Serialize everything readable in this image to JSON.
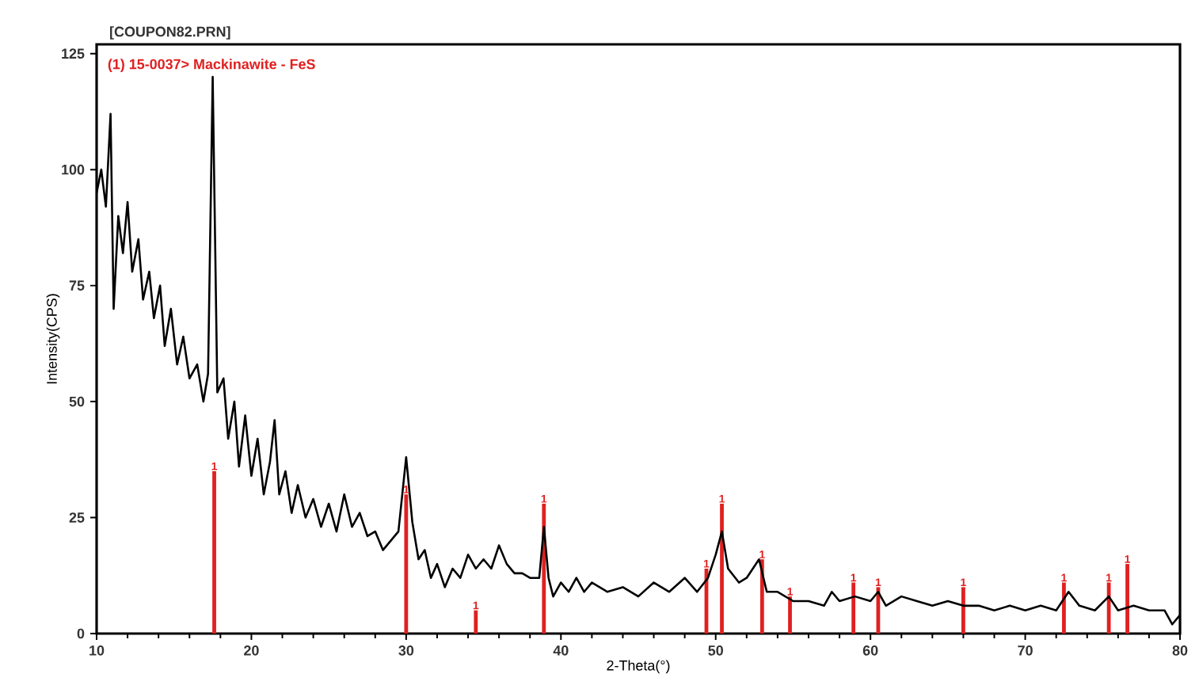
{
  "chart_data": {
    "type": "line",
    "title": "[COUPON82.PRN]",
    "xlabel": "2-Theta(°)",
    "ylabel": "Intensity(CPS)",
    "xlim": [
      10,
      80
    ],
    "ylim": [
      0,
      127
    ],
    "xticks": [
      10,
      20,
      30,
      40,
      50,
      60,
      70,
      80
    ],
    "yticks": [
      0,
      25,
      50,
      75,
      100,
      125
    ],
    "grid": false,
    "annotations": [
      "(1) 15-0037> Mackinawite - FeS",
      {
        "text": "1",
        "x": 17.6,
        "y": 35
      },
      {
        "text": "1",
        "x": 30.0,
        "y": 30
      },
      {
        "text": "1",
        "x": 34.5,
        "y": 5
      },
      {
        "text": "1",
        "x": 38.9,
        "y": 28
      },
      {
        "text": "1",
        "x": 49.4,
        "y": 14
      },
      {
        "text": "1",
        "x": 50.4,
        "y": 28
      },
      {
        "text": "1",
        "x": 53.0,
        "y": 16
      },
      {
        "text": "1",
        "x": 54.8,
        "y": 8
      },
      {
        "text": "1",
        "x": 58.9,
        "y": 11
      },
      {
        "text": "1",
        "x": 60.5,
        "y": 10
      },
      {
        "text": "1",
        "x": 66.0,
        "y": 10
      },
      {
        "text": "1",
        "x": 72.5,
        "y": 11
      },
      {
        "text": "1",
        "x": 75.4,
        "y": 11
      },
      {
        "text": "1",
        "x": 76.6,
        "y": 15
      }
    ],
    "series": [
      {
        "color": "#000000",
        "x": [
          10,
          10.3,
          10.6,
          10.9,
          11.1,
          11.4,
          11.7,
          12.0,
          12.3,
          12.7,
          13.0,
          13.4,
          13.7,
          14.1,
          14.4,
          14.8,
          15.2,
          15.6,
          16.0,
          16.5,
          16.9,
          17.2,
          17.5,
          17.8,
          18.2,
          18.5,
          18.9,
          19.2,
          19.6,
          20.0,
          20.4,
          20.8,
          21.2,
          21.5,
          21.8,
          22.2,
          22.6,
          23.0,
          23.5,
          24.0,
          24.5,
          25.0,
          25.5,
          26.0,
          26.5,
          27.0,
          27.5,
          28.0,
          28.5,
          29.0,
          29.5,
          30.0,
          30.4,
          30.8,
          31.2,
          31.6,
          32.0,
          32.5,
          33.0,
          33.5,
          34.0,
          34.5,
          35.0,
          35.5,
          36.0,
          36.5,
          37.0,
          37.5,
          38.0,
          38.6,
          38.9,
          39.2,
          39.5,
          40.0,
          40.5,
          41.0,
          41.5,
          42.0,
          43.0,
          44.0,
          45.0,
          46.0,
          47.0,
          48.0,
          48.8,
          49.5,
          50.0,
          50.4,
          50.8,
          51.5,
          52.0,
          52.8,
          53.3,
          54.0,
          55.0,
          56.0,
          57.0,
          57.5,
          58.0,
          59.0,
          60.0,
          60.5,
          61.0,
          62.0,
          63.0,
          64.0,
          65.0,
          66.0,
          67.0,
          68.0,
          69.0,
          70.0,
          71.0,
          72.0,
          72.8,
          73.5,
          74.5,
          75.4,
          76.0,
          77.0,
          78.0,
          79.0,
          79.5,
          80
        ],
        "values": [
          95,
          100,
          92,
          112,
          70,
          90,
          82,
          93,
          78,
          85,
          72,
          78,
          68,
          75,
          62,
          70,
          58,
          64,
          55,
          58,
          50,
          56,
          120,
          52,
          55,
          42,
          50,
          36,
          47,
          34,
          42,
          30,
          37,
          46,
          30,
          35,
          26,
          32,
          25,
          29,
          23,
          28,
          22,
          30,
          23,
          26,
          21,
          22,
          18,
          20,
          22,
          38,
          24,
          16,
          18,
          12,
          15,
          10,
          14,
          12,
          17,
          14,
          16,
          14,
          19,
          15,
          13,
          13,
          12,
          12,
          23,
          12,
          8,
          11,
          9,
          12,
          9,
          11,
          9,
          10,
          8,
          11,
          9,
          12,
          9,
          12,
          17,
          22,
          14,
          11,
          12,
          16,
          9,
          9,
          7,
          7,
          6,
          9,
          7,
          8,
          7,
          9,
          6,
          8,
          7,
          6,
          7,
          6,
          6,
          5,
          6,
          5,
          6,
          5,
          9,
          6,
          5,
          8,
          5,
          6,
          5,
          5,
          2,
          4
        ]
      },
      {
        "type": "bar",
        "color": "#e02020",
        "x": [
          17.6,
          30.0,
          34.5,
          38.9,
          49.4,
          50.4,
          53.0,
          54.8,
          58.9,
          60.5,
          66.0,
          72.5,
          75.4,
          76.6
        ],
        "values": [
          35,
          30,
          5,
          28,
          14,
          28,
          16,
          8,
          11,
          10,
          10,
          11,
          11,
          15
        ]
      }
    ]
  }
}
